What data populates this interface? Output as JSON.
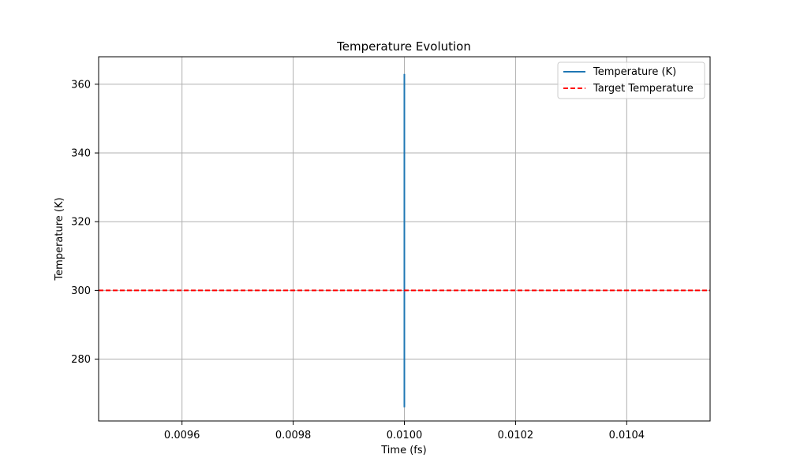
{
  "chart_data": {
    "type": "line",
    "title": "Temperature Evolution",
    "xlabel": "Time (fs)",
    "ylabel": "Temperature (K)",
    "xlim": [
      0.00945,
      0.01055
    ],
    "ylim": [
      262.0,
      368.0
    ],
    "x_ticks": [
      0.0096,
      0.0098,
      0.01,
      0.0102,
      0.0104
    ],
    "x_tick_labels": [
      "0.0096",
      "0.0098",
      "0.0100",
      "0.0102",
      "0.0104"
    ],
    "y_ticks": [
      280,
      300,
      320,
      340,
      360
    ],
    "y_tick_labels": [
      "280",
      "300",
      "320",
      "340",
      "360"
    ],
    "grid": true,
    "legend_position": "top-right",
    "series": [
      {
        "name": "Temperature (K)",
        "color": "#1f77b4",
        "style": "solid",
        "x": [
          0.01,
          0.01
        ],
        "y": [
          266.0,
          363.0
        ]
      }
    ],
    "reference_lines": [
      {
        "name": "Target Temperature",
        "color": "#ff0000",
        "style": "dashed",
        "y": 300
      }
    ]
  }
}
